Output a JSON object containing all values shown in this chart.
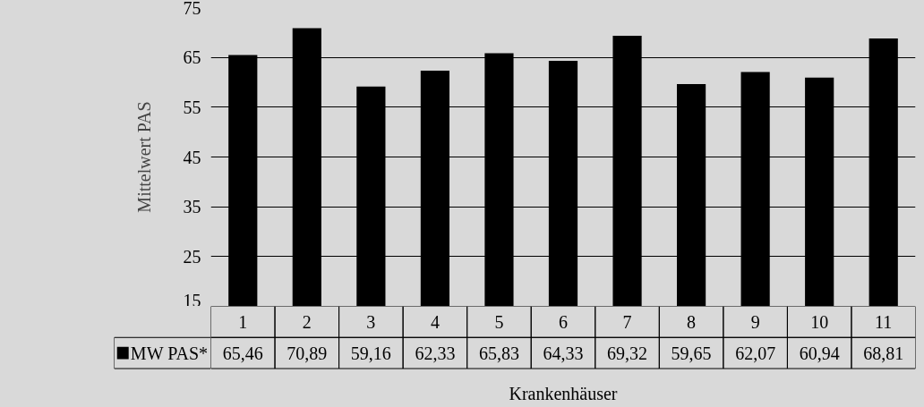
{
  "chart_data": {
    "type": "bar",
    "ylabel": "Mittelwert PAS",
    "xlabel": "Krankenhäuser",
    "categories": [
      "1",
      "2",
      "3",
      "4",
      "5",
      "6",
      "7",
      "8",
      "9",
      "10",
      "11"
    ],
    "series": [
      {
        "name": "MW PAS*",
        "color": "#000000",
        "values": [
          65.46,
          70.89,
          59.16,
          62.33,
          65.83,
          64.33,
          69.32,
          59.65,
          62.07,
          60.94,
          68.81
        ],
        "value_labels": [
          "65,46",
          "70,89",
          "59,16",
          "62,33",
          "65,83",
          "64,33",
          "69,32",
          "59,65",
          "62,07",
          "60,94",
          "68,81"
        ]
      }
    ],
    "ylim": [
      15,
      75
    ],
    "yticks": [
      15,
      25,
      35,
      45,
      55,
      65,
      75
    ],
    "grid": "y",
    "legend": "bottom left"
  }
}
